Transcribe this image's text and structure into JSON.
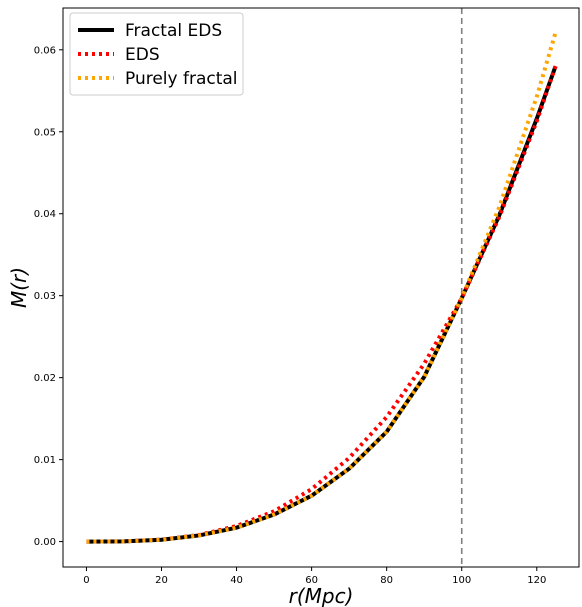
{
  "chart_data": {
    "type": "line",
    "title": "",
    "xlabel": "r(Mpc)",
    "ylabel": "M(r)",
    "xlim": [
      -6.25,
      131.25
    ],
    "ylim": [
      -0.0031,
      0.0651
    ],
    "xticks": [
      0,
      20,
      40,
      60,
      80,
      100,
      120
    ],
    "yticks": [
      0.0,
      0.01,
      0.02,
      0.03,
      0.04,
      0.05,
      0.06
    ],
    "x_tick_labels": [
      "0",
      "20",
      "40",
      "60",
      "80",
      "100",
      "120"
    ],
    "y_tick_labels": [
      "0.00",
      "0.01",
      "0.02",
      "0.03",
      "0.04",
      "0.05",
      "0.06"
    ],
    "grid": false,
    "legend_position": "top-left",
    "vline": {
      "x": 100,
      "color": "#808080",
      "style": "dashed"
    },
    "x": [
      0,
      10,
      20,
      30,
      40,
      50,
      60,
      70,
      80,
      90,
      100,
      110,
      120,
      125
    ],
    "series": [
      {
        "name": "Fractal EDS",
        "color": "#000000",
        "style": "solid",
        "values": [
          0.0,
          3e-05,
          0.00022,
          0.00075,
          0.0017,
          0.0033,
          0.0056,
          0.0089,
          0.0134,
          0.0201,
          0.0297,
          0.0398,
          0.0516,
          0.058
        ]
      },
      {
        "name": "EDS",
        "color": "#ff0000",
        "style": "dotted",
        "values": [
          0.0,
          3e-05,
          0.00024,
          0.0008,
          0.0019,
          0.0037,
          0.0064,
          0.0102,
          0.0152,
          0.0217,
          0.0297,
          0.0396,
          0.0513,
          0.058
        ]
      },
      {
        "name": "Purely fractal",
        "color": "#ffa500",
        "style": "dotted",
        "values": [
          0.0,
          3e-05,
          0.00022,
          0.00075,
          0.0017,
          0.0033,
          0.0056,
          0.0089,
          0.0134,
          0.0201,
          0.0297,
          0.0408,
          0.0543,
          0.0621
        ]
      }
    ]
  }
}
